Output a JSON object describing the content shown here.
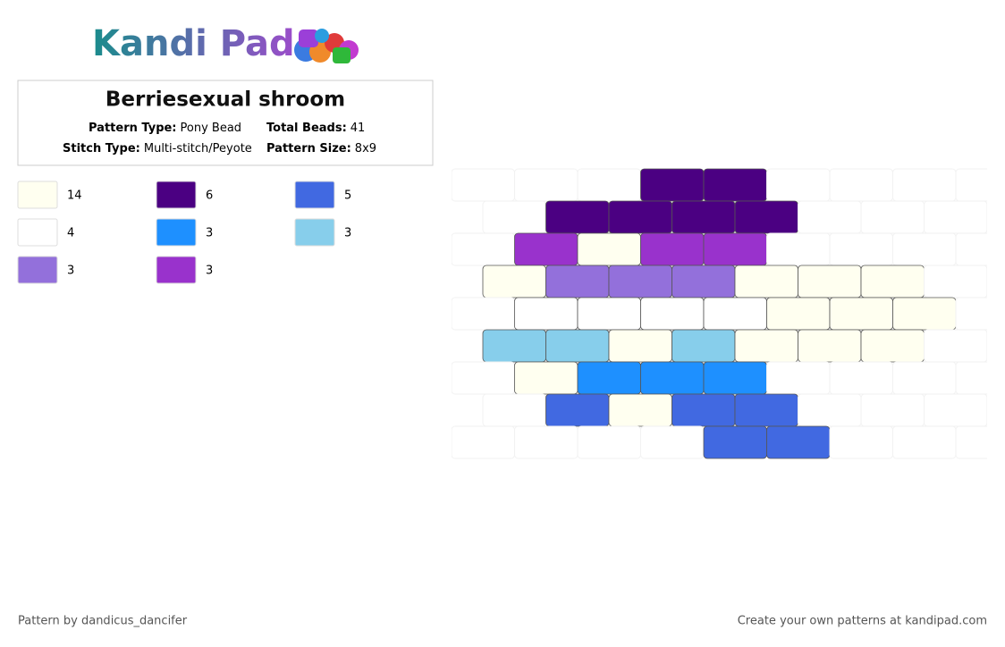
{
  "header": {
    "logo": "Kandi Pad",
    "title": "Berriesexual shroom",
    "info": [
      {
        "label": "Pattern Type:",
        "value": "Pony Bead"
      },
      {
        "label": "Total Beads:",
        "value": "41"
      },
      {
        "label": "Stitch Type:",
        "value": "Multi-stitch/Peyote"
      },
      {
        "label": "Pattern Size:",
        "value": "8x9"
      }
    ]
  },
  "legend": [
    {
      "color": "#fffff0",
      "count": 14
    },
    {
      "color": "#4b0082",
      "count": 6
    },
    {
      "color": "#4169e1",
      "count": 5
    },
    {
      "color": "#ffffff",
      "count": 4
    },
    {
      "color": "#1e90ff",
      "count": 3
    },
    {
      "color": "#87ceeb",
      "count": 3
    },
    {
      "color": "#9370db",
      "count": 3
    },
    {
      "color": "#9932cc",
      "count": 3
    }
  ],
  "beads": [
    [
      null,
      null,
      null,
      "#4b0082",
      "#4b0082",
      null,
      null,
      null,
      null
    ],
    [
      null,
      "#4b0082",
      "#4b0082",
      "#4b0082",
      "#4b0082",
      null,
      null,
      null,
      null
    ],
    [
      null,
      "#9932cc",
      "#fffff0",
      "#9932cc",
      "#9932cc",
      null,
      null,
      null,
      null
    ],
    [
      "#fffff0",
      "#9370db",
      "#9370db",
      "#9370db",
      "#fffff0",
      "#fffff0",
      "#fffff0",
      null,
      null
    ],
    [
      null,
      "#ffffff",
      "#ffffff",
      "#ffffff",
      "#ffffff",
      "#fffff0",
      "#fffff0",
      "#fffff0",
      null
    ],
    [
      "#87ceeb",
      "#87ceeb",
      "#fffff0",
      "#87ceeb",
      "#fffff0",
      "#fffff0",
      "#fffff0",
      null,
      null
    ],
    [
      null,
      "#fffff0",
      "#1e90ff",
      "#1e90ff",
      "#1e90ff",
      null,
      null,
      null,
      null
    ],
    [
      null,
      "#4169e1",
      "#fffff0",
      "#4169e1",
      "#4169e1",
      null,
      null,
      null,
      null
    ],
    [
      null,
      null,
      null,
      null,
      "#4169e1",
      "#4169e1",
      null,
      null,
      null
    ]
  ],
  "footer": {
    "credit": "Pattern by dandicus_dancifer",
    "cta": "Create your own patterns at kandipad.com"
  }
}
